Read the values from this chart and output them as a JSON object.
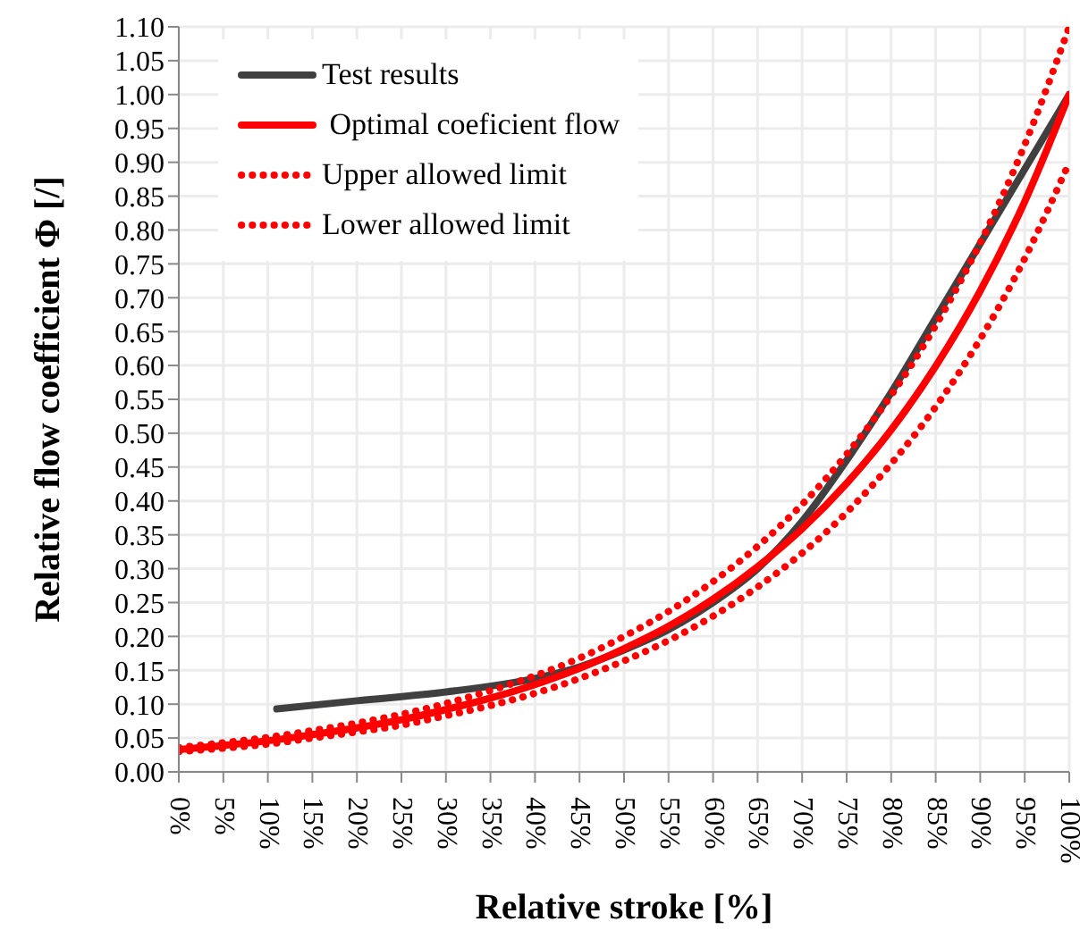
{
  "chart_data": {
    "type": "line",
    "xlabel": "Relative stroke  [%]",
    "ylabel": "Relative flow coefficient Φ [/]",
    "x": [
      0,
      5,
      10,
      15,
      20,
      25,
      30,
      35,
      40,
      45,
      50,
      55,
      60,
      65,
      70,
      75,
      80,
      85,
      90,
      95,
      100
    ],
    "series": [
      {
        "name": "Test results",
        "color": "#404040",
        "line_style": "solid",
        "x": [
          11,
          20,
          30,
          40,
          45,
          50,
          55,
          60,
          65,
          70,
          75,
          80,
          85,
          90,
          95,
          100
        ],
        "values": [
          0.093,
          0.105,
          0.118,
          0.138,
          0.155,
          0.18,
          0.21,
          0.25,
          0.3,
          0.37,
          0.46,
          0.56,
          0.67,
          0.78,
          0.89,
          1.0
        ]
      },
      {
        "name": " Optimal coeficient flow",
        "color": "#ff0000",
        "line_style": "solid",
        "values": [
          0.033,
          0.039,
          0.046,
          0.055,
          0.065,
          0.077,
          0.092,
          0.109,
          0.129,
          0.153,
          0.182,
          0.215,
          0.255,
          0.303,
          0.359,
          0.426,
          0.505,
          0.599,
          0.71,
          0.842,
          1.0
        ]
      },
      {
        "name": "Upper allowed limit",
        "color": "#ff0000",
        "line_style": "dotted",
        "values": [
          0.036,
          0.043,
          0.051,
          0.061,
          0.072,
          0.085,
          0.101,
          0.12,
          0.142,
          0.168,
          0.2,
          0.237,
          0.281,
          0.333,
          0.395,
          0.469,
          0.556,
          0.659,
          0.781,
          0.926,
          1.1
        ]
      },
      {
        "name": "Lower allowed limit",
        "color": "#ff0000",
        "line_style": "dotted",
        "values": [
          0.03,
          0.035,
          0.041,
          0.05,
          0.059,
          0.069,
          0.083,
          0.098,
          0.116,
          0.138,
          0.164,
          0.194,
          0.23,
          0.273,
          0.323,
          0.383,
          0.455,
          0.539,
          0.639,
          0.758,
          0.9
        ]
      }
    ],
    "xlim": [
      0,
      100
    ],
    "xticks": [
      {
        "value": 0,
        "label": "0%"
      },
      {
        "value": 5,
        "label": "5%"
      },
      {
        "value": 10,
        "label": "10%"
      },
      {
        "value": 15,
        "label": "15%"
      },
      {
        "value": 20,
        "label": "20%"
      },
      {
        "value": 25,
        "label": "25%"
      },
      {
        "value": 30,
        "label": "30%"
      },
      {
        "value": 35,
        "label": "35%"
      },
      {
        "value": 40,
        "label": "40%"
      },
      {
        "value": 45,
        "label": "45%"
      },
      {
        "value": 50,
        "label": "50%"
      },
      {
        "value": 55,
        "label": "55%"
      },
      {
        "value": 60,
        "label": "60%"
      },
      {
        "value": 65,
        "label": "65%"
      },
      {
        "value": 70,
        "label": "70%"
      },
      {
        "value": 75,
        "label": "75%"
      },
      {
        "value": 80,
        "label": "80%"
      },
      {
        "value": 85,
        "label": "85%"
      },
      {
        "value": 90,
        "label": "90%"
      },
      {
        "value": 95,
        "label": "95%"
      },
      {
        "value": 100,
        "label": "100%"
      }
    ],
    "ylim": [
      0,
      1.1
    ],
    "yticks": [
      {
        "value": 0,
        "label": "0.00"
      },
      0.05,
      {
        "value": 0.1,
        "label": "0.10"
      },
      0.15,
      {
        "value": 0.2,
        "label": "0.20"
      },
      0.25,
      {
        "value": 0.3,
        "label": "0.30"
      },
      0.35,
      {
        "value": 0.4,
        "label": "0.40"
      },
      0.45,
      {
        "value": 0.5,
        "label": "0.50"
      },
      0.55,
      {
        "value": 0.6,
        "label": "0.60"
      },
      0.65,
      {
        "value": 0.7,
        "label": "0.70"
      },
      0.75,
      {
        "value": 0.8,
        "label": "0.80"
      },
      0.85,
      {
        "value": 0.9,
        "label": "0.90"
      },
      0.95,
      {
        "value": 1,
        "label": "1.00"
      },
      1.05,
      {
        "value": 1.1,
        "label": "1.10"
      }
    ],
    "grid": true,
    "legend": "top left",
    "marker": "none"
  }
}
